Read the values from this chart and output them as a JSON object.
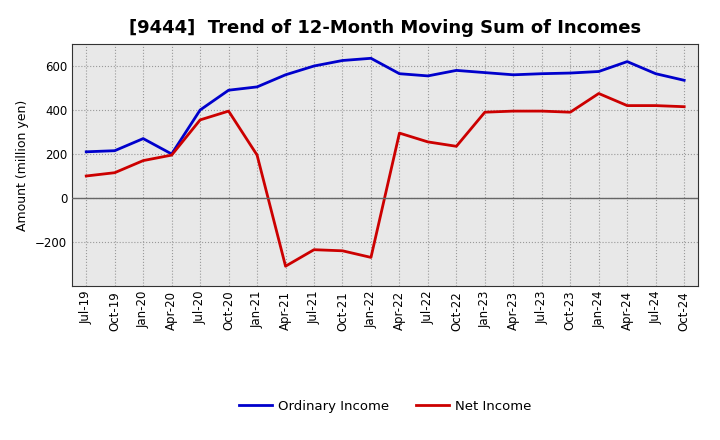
{
  "title": "[9444]  Trend of 12-Month Moving Sum of Incomes",
  "ylabel": "Amount (million yen)",
  "x_labels": [
    "Jul-19",
    "Oct-19",
    "Jan-20",
    "Apr-20",
    "Jul-20",
    "Oct-20",
    "Jan-21",
    "Apr-21",
    "Jul-21",
    "Oct-21",
    "Jan-22",
    "Apr-22",
    "Jul-22",
    "Oct-22",
    "Jan-23",
    "Apr-23",
    "Jul-23",
    "Oct-23",
    "Jan-24",
    "Apr-24",
    "Jul-24",
    "Oct-24"
  ],
  "ordinary_income": [
    210,
    215,
    270,
    200,
    400,
    490,
    505,
    560,
    600,
    625,
    635,
    565,
    555,
    580,
    570,
    560,
    565,
    568,
    575,
    620,
    565,
    535
  ],
  "net_income": [
    100,
    115,
    170,
    195,
    355,
    395,
    195,
    -310,
    -235,
    -240,
    -270,
    295,
    255,
    235,
    390,
    395,
    395,
    390,
    475,
    420,
    420,
    415
  ],
  "ordinary_color": "#0000CC",
  "net_color": "#CC0000",
  "bg_color": "#FFFFFF",
  "plot_bg_color": "#E8E8E8",
  "grid_color": "#999999",
  "zero_line_color": "#666666",
  "ylim": [
    -400,
    700
  ],
  "yticks": [
    -200,
    0,
    200,
    400,
    600
  ],
  "legend_labels": [
    "Ordinary Income",
    "Net Income"
  ],
  "title_fontsize": 13,
  "axis_fontsize": 9,
  "tick_fontsize": 8.5,
  "line_width": 2.0
}
